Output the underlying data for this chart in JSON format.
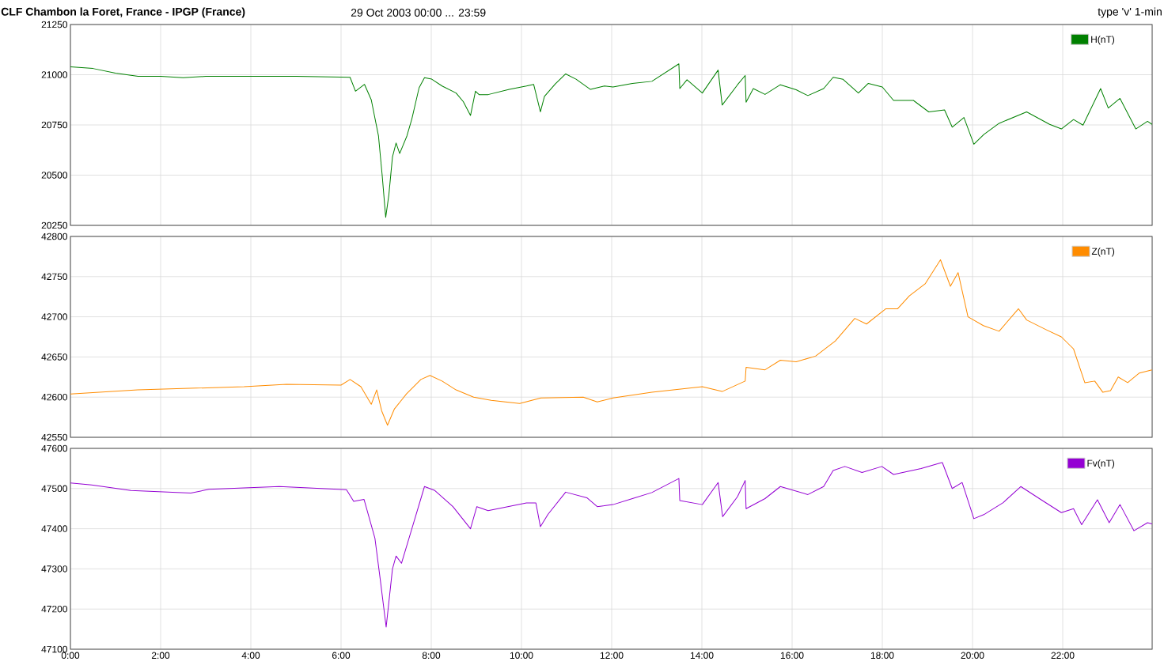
{
  "chart_data": [
    {
      "type": "line",
      "title": "CLF  Chambon la Foret, France - IPGP (France)",
      "subtitle": "29 Oct 2003 00:00 ... 23:59",
      "annotations": [
        "type 'v'   1-min"
      ],
      "series": [
        {
          "name": "H(nT)",
          "color": "#008000",
          "x": [
            0,
            0.5,
            1,
            1.5,
            2,
            2.5,
            3,
            3.5,
            4,
            5,
            6,
            6.2,
            6.32,
            6.52,
            6.67,
            6.83,
            6.91,
            6.99,
            7.06,
            7.14,
            7.22,
            7.3,
            7.46,
            7.57,
            7.73,
            7.85,
            8.01,
            8.24,
            8.55,
            8.71,
            8.87,
            8.98,
            9.06,
            9.26,
            9.73,
            10.11,
            10.27,
            10.42,
            10.51,
            10.75,
            10.98,
            11.21,
            11.53,
            11.84,
            12.03,
            12.46,
            12.89,
            13.49,
            13.51,
            13.67,
            14.01,
            14.36,
            14.45,
            14.79,
            14.96,
            14.98,
            15.14,
            15.4,
            15.74,
            16.09,
            16.35,
            16.7,
            16.91,
            17.13,
            17.47,
            17.69,
            18,
            18.25,
            18.69,
            19.03,
            19.38,
            19.55,
            19.81,
            20.03,
            20.25,
            20.59,
            21.2,
            21.71,
            21.97,
            22.24,
            22.45,
            22.84,
            23.01,
            23.27,
            23.62,
            23.88,
            23.98
          ],
          "values": [
            21039,
            21031,
            21008,
            20992,
            20992,
            20985,
            20992,
            20992,
            20992,
            20992,
            20988,
            20987,
            20918,
            20952,
            20875,
            20695,
            20504,
            20290,
            20402,
            20591,
            20660,
            20608,
            20695,
            20780,
            20935,
            20985,
            20978,
            20944,
            20909,
            20866,
            20797,
            20918,
            20901,
            20901,
            20927,
            20944,
            20952,
            20815,
            20892,
            20954,
            21004,
            20978,
            20927,
            20944,
            20939,
            20957,
            20967,
            21054,
            20931,
            20975,
            20909,
            21023,
            20849,
            20950,
            20996,
            20863,
            20931,
            20902,
            20950,
            20925,
            20896,
            20931,
            20987,
            20977,
            20909,
            20957,
            20939,
            20872,
            20872,
            20815,
            20825,
            20739,
            20787,
            20654,
            20702,
            20758,
            20815,
            20753,
            20730,
            20777,
            20749,
            20931,
            20834,
            20882,
            20730,
            20768,
            20753
          ]
        }
      ],
      "xlim": [
        0,
        23.983
      ],
      "xticks": [
        0,
        2,
        4,
        6,
        8,
        10,
        12,
        14,
        16,
        18,
        20,
        22
      ],
      "ylim": [
        20250,
        21250
      ],
      "yticks": [
        20250,
        20500,
        20750,
        21000,
        21250
      ],
      "tick_labels": "y",
      "grid": true,
      "legend": "top right"
    },
    {
      "type": "line",
      "series": [
        {
          "name": "Z(nT)",
          "color": "#ff8c00",
          "x": [
            0,
            1.49,
            3.85,
            4.79,
            6,
            6.2,
            6.44,
            6.67,
            6.79,
            6.9,
            7.03,
            7.18,
            7.45,
            7.77,
            7.97,
            8.24,
            8.55,
            8.94,
            9.33,
            9.96,
            10.43,
            11.37,
            11.68,
            12.03,
            12.89,
            14.01,
            14.45,
            14.96,
            14.98,
            15.4,
            15.74,
            16.09,
            16.52,
            16.96,
            17.39,
            17.65,
            18.08,
            18.34,
            18.6,
            18.95,
            19.29,
            19.51,
            19.68,
            19.9,
            20.24,
            20.59,
            21.02,
            21.2,
            21.63,
            21.97,
            22.24,
            22.49,
            22.71,
            22.89,
            23.06,
            23.23,
            23.44,
            23.7,
            23.98
          ],
          "values": [
            42604,
            42609,
            42613,
            42616,
            42615,
            42622,
            42613,
            42591,
            42609,
            42583,
            42565,
            42585,
            42604,
            42622,
            42627,
            42620,
            42609,
            42600,
            42596,
            42592,
            42599,
            42600,
            42594,
            42599,
            42606,
            42613,
            42607,
            42620,
            42637,
            42634,
            42646,
            42644,
            42651,
            42670,
            42698,
            42691,
            42710,
            42710,
            42726,
            42741,
            42771,
            42738,
            42755,
            42700,
            42689,
            42682,
            42710,
            42696,
            42684,
            42675,
            42660,
            42618,
            42620,
            42606,
            42608,
            42625,
            42618,
            42630,
            42634
          ]
        }
      ],
      "xlim": [
        0,
        23.983
      ],
      "xticks": [
        0,
        2,
        4,
        6,
        8,
        10,
        12,
        14,
        16,
        18,
        20,
        22
      ],
      "ylim": [
        42550,
        42800
      ],
      "yticks": [
        42550,
        42600,
        42650,
        42700,
        42750,
        42800
      ],
      "tick_labels": "y",
      "grid": true,
      "legend": "top right"
    },
    {
      "type": "line",
      "series": [
        {
          "name": "Fv(nT)",
          "color": "#9400d3",
          "x": [
            0,
            0.47,
            1.34,
            2.67,
            3.07,
            4.63,
            6.12,
            6.28,
            6.51,
            6.75,
            6.87,
            7,
            7.14,
            7.22,
            7.34,
            7.57,
            7.85,
            8.08,
            8.48,
            8.87,
            9.01,
            9.26,
            10.11,
            10.32,
            10.42,
            10.59,
            10.98,
            11.45,
            11.68,
            12.03,
            12.46,
            12.89,
            13.49,
            13.51,
            14.01,
            14.36,
            14.46,
            14.79,
            14.96,
            14.98,
            15.4,
            15.74,
            16.35,
            16.7,
            16.91,
            17.17,
            17.55,
            17.99,
            18.25,
            18.86,
            19.33,
            19.55,
            19.77,
            20.03,
            20.25,
            20.68,
            21.07,
            21.55,
            21.97,
            22.24,
            22.42,
            22.77,
            23.03,
            23.27,
            23.58,
            23.88,
            23.98
          ],
          "values": [
            47514,
            47509,
            47495,
            47489,
            47498,
            47505,
            47497,
            47468,
            47473,
            47377,
            47273,
            47155,
            47300,
            47332,
            47314,
            47400,
            47505,
            47495,
            47455,
            47400,
            47455,
            47445,
            47464,
            47464,
            47405,
            47436,
            47491,
            47477,
            47455,
            47460,
            47475,
            47490,
            47525,
            47470,
            47460,
            47515,
            47430,
            47480,
            47520,
            47450,
            47475,
            47505,
            47485,
            47505,
            47545,
            47555,
            47540,
            47555,
            47535,
            47550,
            47565,
            47500,
            47515,
            47425,
            47435,
            47465,
            47505,
            47470,
            47440,
            47450,
            47410,
            47472,
            47415,
            47460,
            47395,
            47415,
            47412
          ]
        }
      ],
      "xlim": [
        0,
        23.983
      ],
      "xticks": [
        {
          "value": 0,
          "label": "0:00"
        },
        {
          "value": 2,
          "label": "2:00"
        },
        {
          "value": 4,
          "label": "4:00"
        },
        {
          "value": 6,
          "label": "6:00"
        },
        {
          "value": 8,
          "label": "8:00"
        },
        {
          "value": 10,
          "label": "10:00"
        },
        {
          "value": 12,
          "label": "12:00"
        },
        {
          "value": 14,
          "label": "14:00"
        },
        {
          "value": 16,
          "label": "16:00"
        },
        {
          "value": 18,
          "label": "18:00"
        },
        {
          "value": 20,
          "label": "20:00"
        },
        {
          "value": 22,
          "label": "22:00"
        }
      ],
      "ylim": [
        47100,
        47600
      ],
      "yticks": [
        47100,
        47200,
        47300,
        47400,
        47500,
        47600
      ],
      "grid": true,
      "legend": "top right"
    }
  ]
}
